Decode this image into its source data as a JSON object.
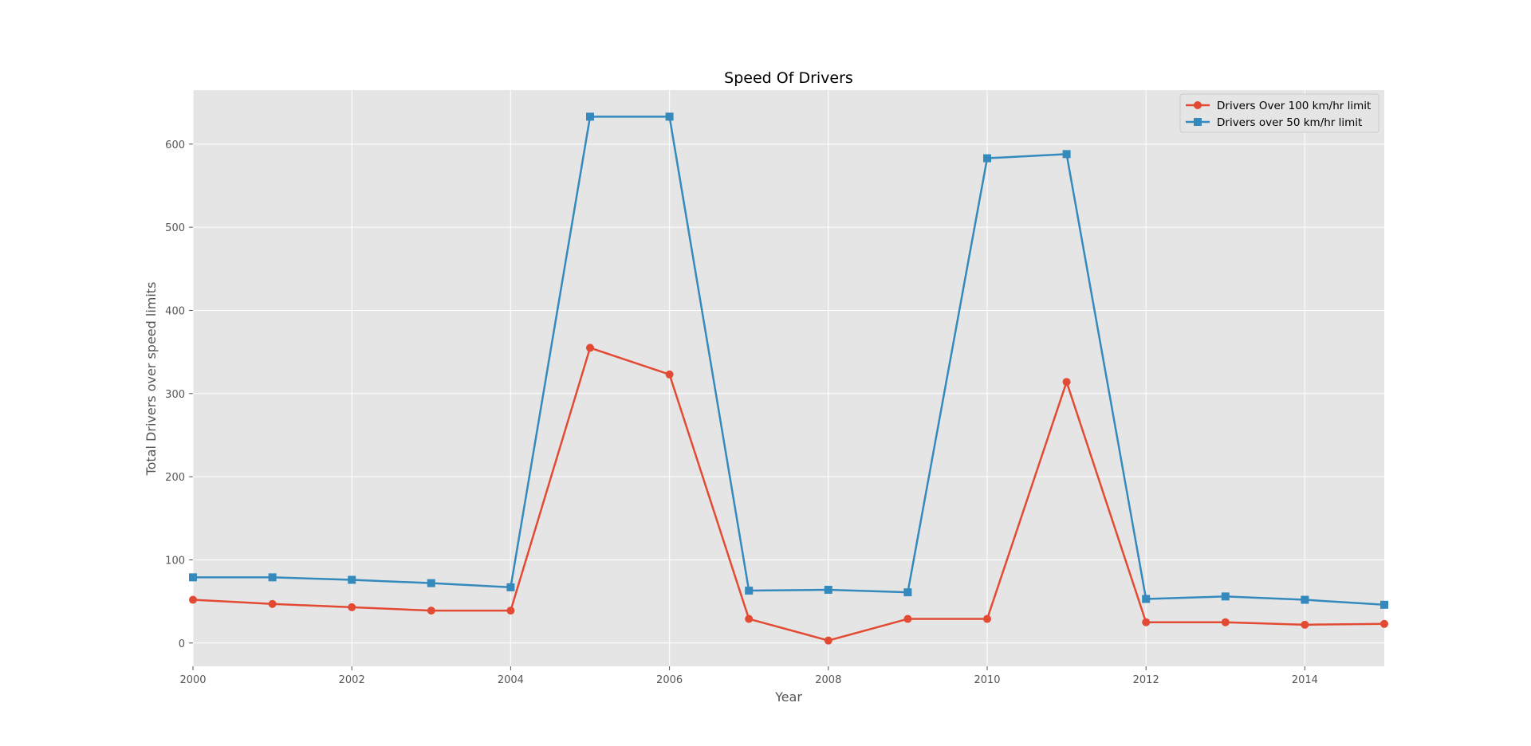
{
  "chart_data": {
    "type": "line",
    "title": "Speed Of Drivers",
    "xlabel": "Year",
    "ylabel": "Total Drivers over speed limits",
    "x": [
      2000,
      2001,
      2002,
      2003,
      2004,
      2005,
      2006,
      2007,
      2008,
      2009,
      2010,
      2011,
      2012,
      2013,
      2014,
      2015
    ],
    "xlim": [
      2000,
      2015
    ],
    "ylim": [
      -28,
      665
    ],
    "x_ticks": [
      "2000",
      "2002",
      "2004",
      "2006",
      "2008",
      "2010",
      "2012",
      "2014"
    ],
    "y_ticks": [
      "0",
      "100",
      "200",
      "300",
      "400",
      "500",
      "600"
    ],
    "grid": true,
    "legend_position": "top-right",
    "background": "#e5e5e5",
    "series": [
      {
        "name": "Drivers Over 100 km/hr limit",
        "color": "#e24a33",
        "marker": "circle",
        "values": [
          52,
          47,
          43,
          39,
          39,
          355,
          323,
          29,
          3,
          29,
          29,
          314,
          25,
          25,
          22,
          23
        ]
      },
      {
        "name": "Drivers over 50 km/hr limit",
        "color": "#348abd",
        "marker": "square",
        "values": [
          79,
          79,
          76,
          72,
          67,
          633,
          633,
          63,
          64,
          61,
          583,
          588,
          53,
          56,
          52,
          46
        ]
      }
    ]
  }
}
